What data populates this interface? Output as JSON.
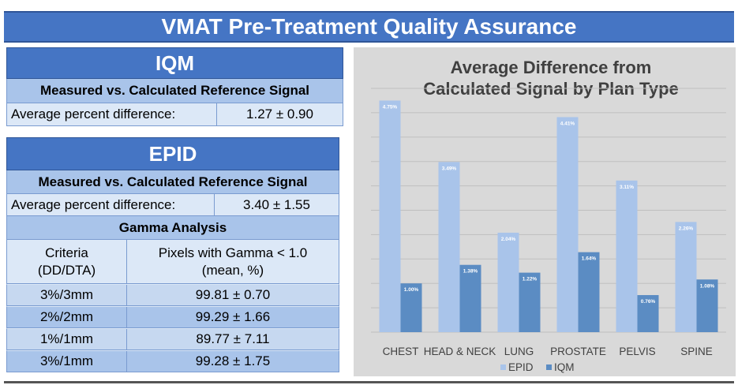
{
  "header": {
    "title": "VMAT Pre-Treatment Quality Assurance"
  },
  "iqm": {
    "title": "IQM",
    "subtitle": "Measured vs. Calculated Reference Signal",
    "avg_label": "Average percent difference:",
    "avg_value": "1.27 ± 0.90"
  },
  "epid": {
    "title": "EPID",
    "subtitle": "Measured vs. Calculated Reference Signal",
    "avg_label": "Average percent difference:",
    "avg_value": "3.40 ± 1.55",
    "gamma": {
      "title": "Gamma Analysis",
      "col1_line1": "Criteria",
      "col1_line2": "(DD/DTA)",
      "col2_line1": "Pixels with Gamma < 1.0",
      "col2_line2": "(mean, %)",
      "rows": [
        {
          "criteria": "3%/3mm",
          "value": "99.81 ± 0.70"
        },
        {
          "criteria": "2%/2mm",
          "value": "99.29 ± 1.66"
        },
        {
          "criteria": "1%/1mm",
          "value": "89.77 ± 7.11"
        },
        {
          "criteria": "3%/1mm",
          "value": "99.28 ± 1.75"
        }
      ]
    }
  },
  "chart_data": {
    "type": "bar",
    "title": "Average Difference from Calculated Signal by Plan Type",
    "title_lines": [
      "Average Difference from",
      "Calculated Signal by Plan Type"
    ],
    "categories": [
      "CHEST",
      "HEAD & NECK",
      "LUNG",
      "PROSTATE",
      "PELVIS",
      "SPINE"
    ],
    "series": [
      {
        "name": "EPID",
        "values": [
          4.75,
          3.49,
          2.04,
          4.41,
          3.11,
          2.26
        ],
        "labels": [
          "4.75%",
          "3.49%",
          "2.04%",
          "4.41%",
          "3.11%",
          "2.26%"
        ],
        "color": "#a9c4ea"
      },
      {
        "name": "IQM",
        "values": [
          1.0,
          1.38,
          1.22,
          1.64,
          0.76,
          1.08
        ],
        "labels": [
          "1.00%",
          "1.38%",
          "1.22%",
          "1.64%",
          "0.76%",
          "1.08%"
        ],
        "color": "#5b8cc3"
      }
    ],
    "ylim": [
      0,
      5
    ],
    "grid": true,
    "legend": "bottom",
    "background": "#d9d9d9"
  }
}
